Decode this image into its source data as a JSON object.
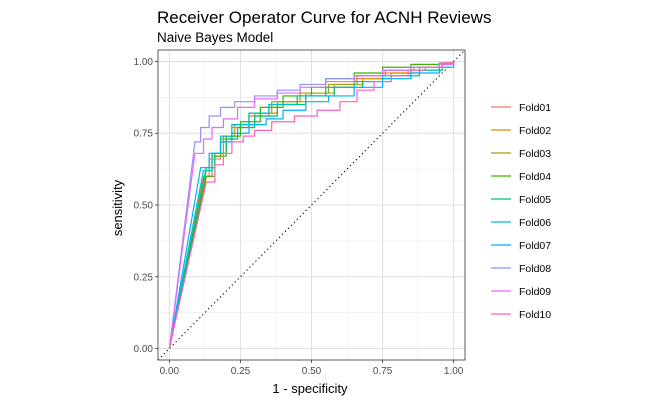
{
  "chart_data": {
    "type": "line",
    "title": "Receiver Operator Curve for ACNH Reviews",
    "subtitle": "Naive Bayes Model",
    "xlabel": "1 - specificity",
    "ylabel": "sensitivity",
    "xlim": [
      -0.04,
      1.04
    ],
    "ylim": [
      -0.04,
      1.04
    ],
    "x_ticks": [
      "0.00",
      "0.25",
      "0.50",
      "0.75",
      "1.00"
    ],
    "y_ticks": [
      "0.00",
      "0.25",
      "0.50",
      "0.75",
      "1.00"
    ],
    "grid": true,
    "legend_position": "right",
    "reference_line": "diagonal-dotted",
    "series": [
      {
        "name": "Fold01",
        "color": "#F8766D",
        "x": [
          0,
          0.12,
          0.14,
          0.18,
          0.22,
          0.28,
          0.35,
          0.45,
          0.55,
          0.65,
          0.75,
          0.85,
          0.95,
          1.0
        ],
        "y": [
          0,
          0.6,
          0.66,
          0.72,
          0.77,
          0.81,
          0.85,
          0.88,
          0.91,
          0.94,
          0.96,
          0.98,
          0.995,
          1.0
        ]
      },
      {
        "name": "Fold02",
        "color": "#D89000",
        "x": [
          0,
          0.13,
          0.15,
          0.19,
          0.23,
          0.3,
          0.38,
          0.48,
          0.58,
          0.68,
          0.78,
          0.88,
          0.96,
          1.0
        ],
        "y": [
          0,
          0.62,
          0.68,
          0.74,
          0.78,
          0.82,
          0.86,
          0.89,
          0.92,
          0.94,
          0.96,
          0.98,
          0.995,
          1.0
        ]
      },
      {
        "name": "Fold03",
        "color": "#A3A500",
        "x": [
          0,
          0.13,
          0.15,
          0.18,
          0.22,
          0.28,
          0.36,
          0.46,
          0.56,
          0.66,
          0.76,
          0.86,
          0.95,
          1.0
        ],
        "y": [
          0,
          0.6,
          0.67,
          0.73,
          0.78,
          0.82,
          0.86,
          0.89,
          0.92,
          0.95,
          0.97,
          0.98,
          0.995,
          1.0
        ]
      },
      {
        "name": "Fold04",
        "color": "#39B600",
        "x": [
          0,
          0.13,
          0.16,
          0.2,
          0.25,
          0.32,
          0.4,
          0.5,
          0.55,
          0.65,
          0.75,
          0.85,
          0.95,
          1.0
        ],
        "y": [
          0,
          0.6,
          0.67,
          0.74,
          0.79,
          0.84,
          0.88,
          0.91,
          0.94,
          0.96,
          0.98,
          0.99,
          0.995,
          1.0
        ]
      },
      {
        "name": "Fold05",
        "color": "#00BF7D",
        "x": [
          0,
          0.13,
          0.16,
          0.2,
          0.24,
          0.3,
          0.38,
          0.48,
          0.58,
          0.68,
          0.78,
          0.88,
          0.96,
          1.0
        ],
        "y": [
          0,
          0.63,
          0.68,
          0.73,
          0.77,
          0.81,
          0.85,
          0.88,
          0.91,
          0.93,
          0.95,
          0.97,
          0.99,
          1.0
        ]
      },
      {
        "name": "Fold06",
        "color": "#00BFC4",
        "x": [
          0,
          0.12,
          0.15,
          0.18,
          0.22,
          0.28,
          0.35,
          0.45,
          0.55,
          0.65,
          0.75,
          0.85,
          0.95,
          1.0
        ],
        "y": [
          0,
          0.62,
          0.68,
          0.74,
          0.78,
          0.82,
          0.85,
          0.88,
          0.91,
          0.93,
          0.95,
          0.97,
          0.99,
          1.0
        ]
      },
      {
        "name": "Fold07",
        "color": "#00B0F6",
        "x": [
          0,
          0.11,
          0.14,
          0.18,
          0.22,
          0.28,
          0.34,
          0.4,
          0.48,
          0.56,
          0.65,
          0.75,
          0.85,
          0.95,
          1.0
        ],
        "y": [
          0,
          0.63,
          0.68,
          0.72,
          0.75,
          0.78,
          0.8,
          0.83,
          0.86,
          0.88,
          0.91,
          0.94,
          0.96,
          0.98,
          1.0
        ]
      },
      {
        "name": "Fold08",
        "color": "#9590FF",
        "x": [
          0,
          0.09,
          0.11,
          0.14,
          0.18,
          0.23,
          0.3,
          0.38,
          0.46,
          0.55,
          0.65,
          0.75,
          0.85,
          0.95,
          1.0
        ],
        "y": [
          0,
          0.72,
          0.77,
          0.81,
          0.84,
          0.86,
          0.88,
          0.9,
          0.92,
          0.94,
          0.95,
          0.97,
          0.98,
          0.995,
          1.0
        ]
      },
      {
        "name": "Fold09",
        "color": "#E76BF3",
        "x": [
          0,
          0.09,
          0.12,
          0.15,
          0.19,
          0.24,
          0.3,
          0.38,
          0.46,
          0.55,
          0.65,
          0.75,
          0.85,
          0.95,
          1.0
        ],
        "y": [
          0,
          0.68,
          0.73,
          0.77,
          0.8,
          0.84,
          0.87,
          0.89,
          0.91,
          0.93,
          0.95,
          0.97,
          0.98,
          0.99,
          1.0
        ]
      },
      {
        "name": "Fold10",
        "color": "#FF62BC",
        "x": [
          0,
          0.13,
          0.16,
          0.19,
          0.22,
          0.26,
          0.3,
          0.36,
          0.44,
          0.52,
          0.6,
          0.66,
          0.72,
          0.78,
          0.84,
          0.9,
          0.96,
          1.0
        ],
        "y": [
          0,
          0.58,
          0.64,
          0.68,
          0.72,
          0.74,
          0.76,
          0.79,
          0.81,
          0.83,
          0.86,
          0.9,
          0.93,
          0.95,
          0.97,
          0.98,
          0.995,
          1.0
        ]
      }
    ]
  }
}
